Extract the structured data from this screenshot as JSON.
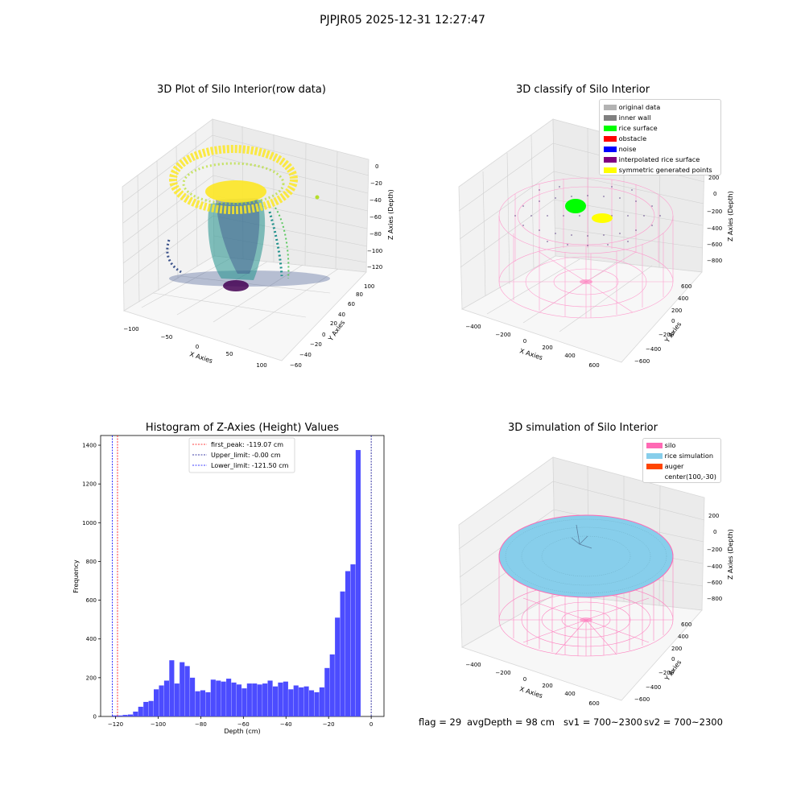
{
  "suptitle": "PJPJR05 2025-12-31 12:27:47",
  "footer": {
    "flag": "flag = 29",
    "avg_depth": "avgDepth = 98 cm",
    "sv1": "sv1 = 700~2300",
    "sv2": "sv2 = 700~2300"
  },
  "panel1": {
    "title": "3D Plot of Silo Interior(row data)",
    "xlabel": "X Axies",
    "ylabel": "Y Axies",
    "zlabel": "Z Axies (Depth)",
    "x_ticks": [
      "−100",
      "−50",
      "0",
      "50",
      "100"
    ],
    "y_ticks": [
      "−60",
      "−40",
      "−20",
      "0",
      "20",
      "40",
      "60",
      "80",
      "100"
    ],
    "z_ticks": [
      "0",
      "−20",
      "−40",
      "−60",
      "−80",
      "−100",
      "−120"
    ],
    "colormap": [
      "#440154",
      "#3b528b",
      "#21918c",
      "#5ec962",
      "#fde725"
    ]
  },
  "panel2": {
    "title": "3D classify of Silo Interior",
    "xlabel": "X Axies",
    "ylabel": "Y Axies",
    "zlabel": "Z Axies (Depth)",
    "x_ticks": [
      "−400",
      "−200",
      "0",
      "200",
      "400",
      "600"
    ],
    "y_ticks": [
      "−600",
      "−400",
      "−200",
      "0",
      "200",
      "400",
      "600"
    ],
    "z_ticks": [
      "200",
      "0",
      "−200",
      "−400",
      "−600",
      "−800"
    ],
    "legend": [
      {
        "label": "original data",
        "color": "#b3b3b3"
      },
      {
        "label": "inner wall",
        "color": "#808080"
      },
      {
        "label": "rice surface",
        "color": "#00ff00"
      },
      {
        "label": "obstacle",
        "color": "#ff0000"
      },
      {
        "label": "noise",
        "color": "#0000ff"
      },
      {
        "label": "interpolated rice surface",
        "color": "#800080"
      },
      {
        "label": "symmetric generated points",
        "color": "#ffff00"
      }
    ]
  },
  "panel4": {
    "title": "3D simulation of Silo Interior",
    "xlabel": "X Axies",
    "ylabel": "Y Axies",
    "zlabel": "Z Axies (Depth)",
    "x_ticks": [
      "−400",
      "−200",
      "0",
      "200",
      "400",
      "600"
    ],
    "y_ticks": [
      "−600",
      "−400",
      "−200",
      "0",
      "200",
      "400",
      "600"
    ],
    "z_ticks": [
      "200",
      "0",
      "−200",
      "−400",
      "−600",
      "−800"
    ],
    "legend": [
      {
        "label": "silo",
        "color": "#ff69b4"
      },
      {
        "label": "rice simulation",
        "color": "#87ceeb"
      },
      {
        "label": "auger",
        "color": "#ff4500"
      },
      {
        "label": "center(100,-30)",
        "color": ""
      }
    ]
  },
  "chart_data": {
    "type": "bar",
    "title": "Histogram of Z-Axies (Height) Values",
    "xlabel": "Depth (cm)",
    "ylabel": "Frequency",
    "xlim": [
      -127,
      6
    ],
    "ylim": [
      0,
      1450
    ],
    "x_ticks": [
      -120,
      -100,
      -80,
      -60,
      -40,
      -20,
      0
    ],
    "x_tick_labels": [
      "−120",
      "−100",
      "−80",
      "−60",
      "−40",
      "−20",
      "0"
    ],
    "y_ticks": [
      0,
      200,
      400,
      600,
      800,
      1000,
      1200,
      1400
    ],
    "bar_color": "#4c4cff",
    "bins": {
      "start": -121.5,
      "width": 2.43,
      "values": [
        5,
        5,
        8,
        10,
        25,
        50,
        75,
        80,
        140,
        160,
        185,
        290,
        170,
        280,
        260,
        200,
        130,
        135,
        125,
        190,
        185,
        180,
        195,
        175,
        165,
        145,
        170,
        170,
        165,
        170,
        185,
        155,
        175,
        180,
        140,
        160,
        150,
        155,
        135,
        125,
        150,
        250,
        320,
        510,
        645,
        750,
        785,
        1375
      ]
    },
    "vlines": [
      {
        "label": "first_peak: -119.07 cm",
        "x": -119.07,
        "color": "#ff0000"
      },
      {
        "label": "Upper_limit: -0.00 cm",
        "x": 0.0,
        "color": "#00008b"
      },
      {
        "label": "Lower_limit: -121.50 cm",
        "x": -121.5,
        "color": "#0000ff"
      }
    ],
    "legend_position": "upper center"
  }
}
